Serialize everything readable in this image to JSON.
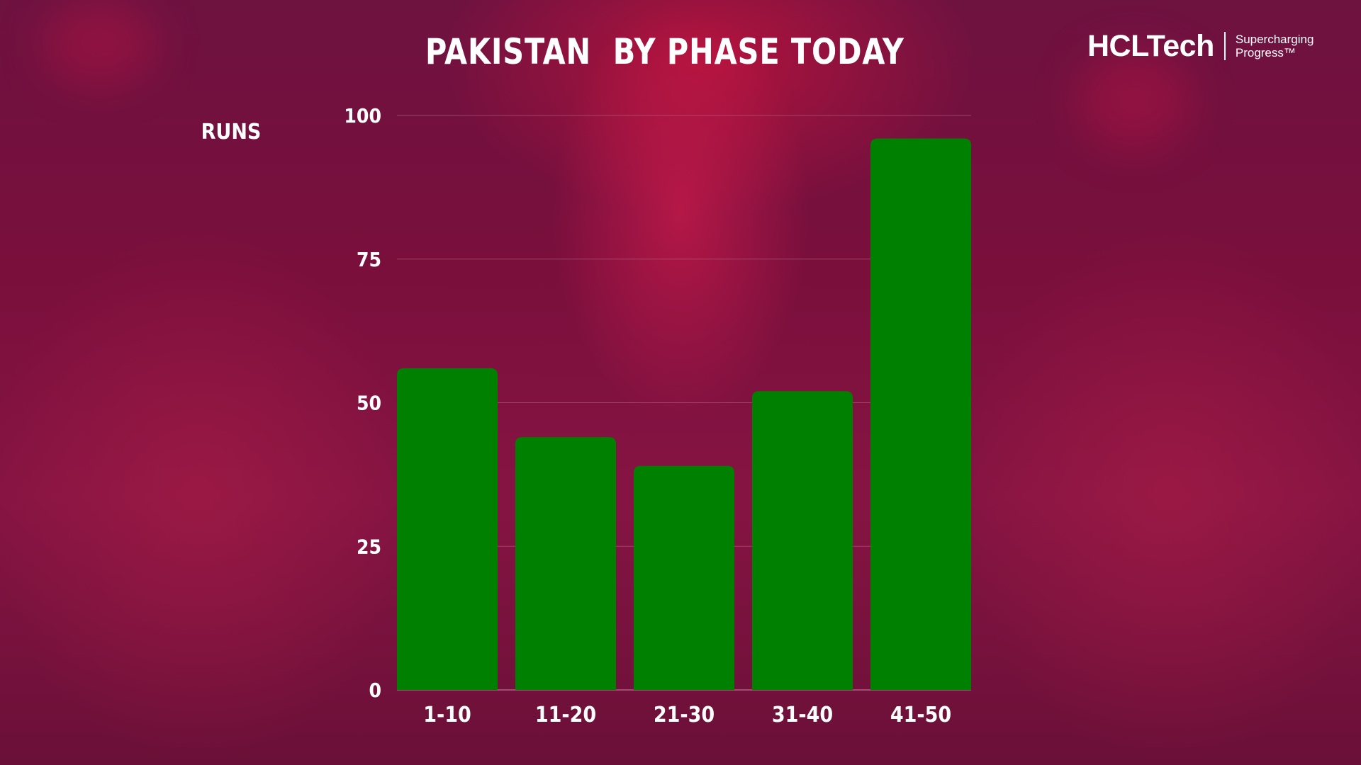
{
  "chart_data": {
    "type": "bar",
    "title": "PAKISTAN  BY PHASE TODAY",
    "ylabel": "RUNS",
    "xlabel": "",
    "categories": [
      "1-10",
      "11-20",
      "21-30",
      "31-40",
      "41-50"
    ],
    "values": [
      56,
      44,
      39,
      52,
      96
    ],
    "ylim": [
      0,
      100
    ],
    "yticks": [
      0,
      25,
      50,
      75,
      100
    ],
    "bar_color": "#008000",
    "grid": true,
    "legend": "none"
  },
  "brand": {
    "name": "HCLTech",
    "tagline_line1": "Supercharging",
    "tagline_line2": "Progress™"
  },
  "colors": {
    "background": "#7a0f3c",
    "text": "#ffffff",
    "gridline": "#b86a8a"
  }
}
